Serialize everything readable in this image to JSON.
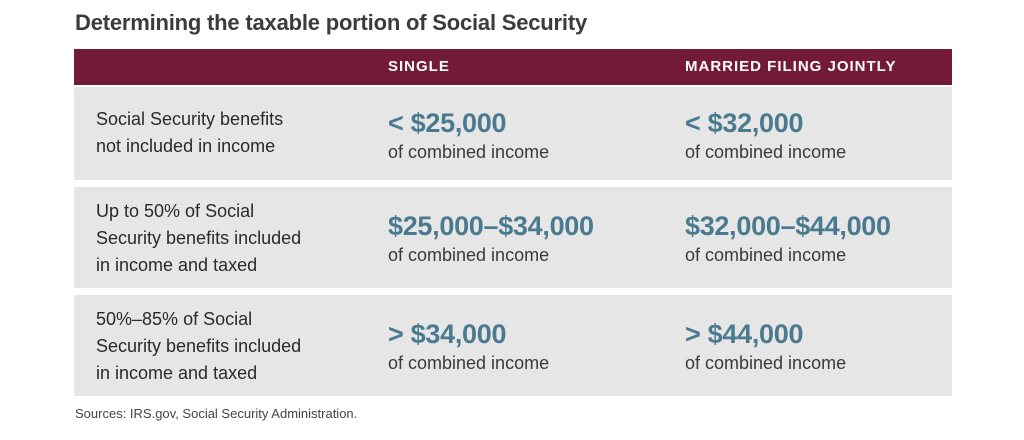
{
  "title": "Determining the taxable portion of Social Security",
  "header": {
    "col1": "",
    "col2": "SINGLE",
    "col3": "MARRIED FILING JOINTLY"
  },
  "rows": [
    {
      "label": "Social Security benefits\nnot included in income",
      "single_amount": "< $25,000",
      "single_sub": "of combined income",
      "joint_amount": "< $32,000",
      "joint_sub": "of combined income"
    },
    {
      "label": "Up to 50% of Social\nSecurity benefits included\nin income and taxed",
      "single_amount": "$25,000–$34,000",
      "single_sub": "of combined income",
      "joint_amount": "$32,000–$44,000",
      "joint_sub": "of combined income"
    },
    {
      "label": "50%–85% of Social\nSecurity benefits included\nin income and taxed",
      "single_amount": "> $34,000",
      "single_sub": "of combined income",
      "joint_amount": "> $44,000",
      "joint_sub": "of combined income"
    }
  ],
  "source": "Sources: IRS.gov, Social Security Administration.",
  "colors": {
    "header_bg": "#731a36",
    "row_bg": "#e6e6e6",
    "amount": "#4a7a90"
  }
}
